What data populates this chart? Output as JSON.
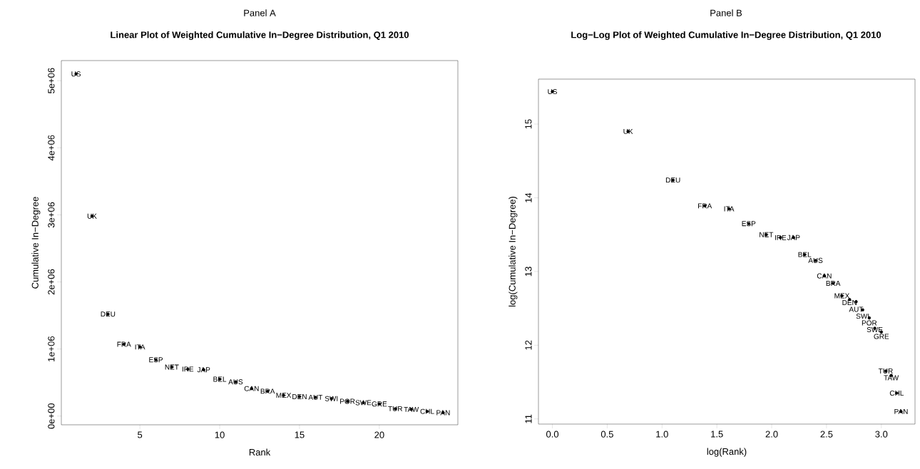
{
  "chart_data": [
    {
      "type": "scatter",
      "title": "Panel A",
      "subtitle": "Linear Plot of Weighted Cumulative In−Degree Distribution, Q1 2010",
      "xlabel": "Rank",
      "ylabel": "Cumulative In−Degree",
      "marker": "none",
      "x": [
        1,
        2,
        3,
        4,
        5,
        6,
        7,
        8,
        9,
        10,
        11,
        12,
        13,
        14,
        15,
        16,
        17,
        18,
        19,
        20,
        21,
        22,
        23,
        24
      ],
      "values": [
        5100000,
        2980000,
        1520000,
        1070000,
        1030000,
        840000,
        730000,
        700000,
        690000,
        550000,
        510000,
        410000,
        370000,
        310000,
        290000,
        280000,
        260000,
        220000,
        200000,
        180000,
        110000,
        100000,
        70000,
        50000
      ],
      "annotations": [
        {
          "text": "US",
          "x": 1,
          "y": 5100000
        },
        {
          "text": "UK",
          "x": 2,
          "y": 2980000
        },
        {
          "text": "DEU",
          "x": 3,
          "y": 1520000
        },
        {
          "text": "FRA",
          "x": 4,
          "y": 1070000
        },
        {
          "text": "ITA",
          "x": 5,
          "y": 1030000
        },
        {
          "text": "ESP",
          "x": 6,
          "y": 840000
        },
        {
          "text": "NET",
          "x": 7,
          "y": 730000
        },
        {
          "text": "IRE",
          "x": 8,
          "y": 700000
        },
        {
          "text": "JAP",
          "x": 9,
          "y": 690000
        },
        {
          "text": "BEL",
          "x": 10,
          "y": 550000
        },
        {
          "text": "AUS",
          "x": 11,
          "y": 510000
        },
        {
          "text": "CAN",
          "x": 12,
          "y": 410000
        },
        {
          "text": "BRA",
          "x": 13,
          "y": 370000
        },
        {
          "text": "MEX",
          "x": 14,
          "y": 310000
        },
        {
          "text": "DEN",
          "x": 15,
          "y": 290000
        },
        {
          "text": "AUT",
          "x": 16,
          "y": 280000
        },
        {
          "text": "SWI",
          "x": 17,
          "y": 260000
        },
        {
          "text": "POR",
          "x": 18,
          "y": 220000
        },
        {
          "text": "SWE",
          "x": 19,
          "y": 200000
        },
        {
          "text": "GRE",
          "x": 20,
          "y": 180000
        },
        {
          "text": "TUR",
          "x": 21,
          "y": 110000
        },
        {
          "text": "TAW",
          "x": 22,
          "y": 100000
        },
        {
          "text": "CHL",
          "x": 23,
          "y": 70000
        },
        {
          "text": "PAN",
          "x": 24,
          "y": 50000
        }
      ],
      "xlim": [
        0.08,
        24.92
      ],
      "ylim": [
        -130000,
        5300000
      ],
      "xticks": [
        5,
        10,
        15,
        20
      ],
      "yticks": [
        {
          "value": 0,
          "label": "0e+00"
        },
        {
          "value": 1000000,
          "label": "1e+06"
        },
        {
          "value": 2000000,
          "label": "2e+06"
        },
        {
          "value": 3000000,
          "label": "3e+06"
        },
        {
          "value": 4000000,
          "label": "4e+06"
        },
        {
          "value": 5000000,
          "label": "5e+06"
        }
      ]
    },
    {
      "type": "scatter",
      "title": "Panel B",
      "subtitle": "Log−Log Plot of Weighted Cumulative In−Degree Distribution, Q1 2010",
      "xlabel": "log(Rank)",
      "ylabel": "log(Cumulative In−Degree)",
      "marker": "none",
      "x": [
        0,
        0.69,
        1.1,
        1.39,
        1.61,
        1.79,
        1.95,
        2.08,
        2.2,
        2.3,
        2.4,
        2.48,
        2.56,
        2.64,
        2.71,
        2.77,
        2.83,
        2.89,
        2.94,
        3.0,
        3.04,
        3.09,
        3.14,
        3.18
      ],
      "values": [
        15.44,
        14.9,
        14.24,
        13.89,
        13.85,
        13.65,
        13.5,
        13.46,
        13.46,
        13.23,
        13.15,
        12.94,
        12.84,
        12.67,
        12.62,
        12.59,
        12.48,
        12.37,
        12.23,
        12.18,
        11.65,
        11.59,
        11.35,
        11.1
      ],
      "annotations": [
        {
          "text": "US",
          "x": 0,
          "y": 15.44
        },
        {
          "text": "UK",
          "x": 0.69,
          "y": 14.9
        },
        {
          "text": "DEU",
          "x": 1.1,
          "y": 14.24
        },
        {
          "text": "FRA",
          "x": 1.39,
          "y": 13.89
        },
        {
          "text": "ITA",
          "x": 1.61,
          "y": 13.85
        },
        {
          "text": "ESP",
          "x": 1.79,
          "y": 13.65
        },
        {
          "text": "NET",
          "x": 1.95,
          "y": 13.5
        },
        {
          "text": "IRE",
          "x": 2.08,
          "y": 13.46
        },
        {
          "text": "JAP",
          "x": 2.2,
          "y": 13.46
        },
        {
          "text": "BEL",
          "x": 2.3,
          "y": 13.23
        },
        {
          "text": "AUS",
          "x": 2.4,
          "y": 13.15
        },
        {
          "text": "CAN",
          "x": 2.48,
          "y": 12.94
        },
        {
          "text": "BRA",
          "x": 2.56,
          "y": 12.84
        },
        {
          "text": "MEX",
          "x": 2.64,
          "y": 12.67
        },
        {
          "text": "DEN",
          "x": 2.71,
          "y": 12.62
        },
        {
          "text": "AUT",
          "x": 2.77,
          "y": 12.59
        },
        {
          "text": "SWI",
          "x": 2.83,
          "y": 12.48
        },
        {
          "text": "POR",
          "x": 2.89,
          "y": 12.37
        },
        {
          "text": "SWE",
          "x": 2.94,
          "y": 12.23
        },
        {
          "text": "GRE",
          "x": 3.0,
          "y": 12.18
        },
        {
          "text": "TUR",
          "x": 3.04,
          "y": 11.65
        },
        {
          "text": "TAW",
          "x": 3.09,
          "y": 11.59
        },
        {
          "text": "CHL",
          "x": 3.14,
          "y": 11.35
        },
        {
          "text": "PAN",
          "x": 3.18,
          "y": 11.1
        }
      ],
      "xlim": [
        -0.127,
        3.307
      ],
      "ylim": [
        10.93,
        15.61
      ],
      "xticks": [
        {
          "value": 0,
          "label": "0.0"
        },
        {
          "value": 0.5,
          "label": "0.5"
        },
        {
          "value": 1,
          "label": "1.0"
        },
        {
          "value": 1.5,
          "label": "1.5"
        },
        {
          "value": 2,
          "label": "2.0"
        },
        {
          "value": 2.5,
          "label": "2.5"
        },
        {
          "value": 3,
          "label": "3.0"
        }
      ],
      "yticks": [
        11,
        12,
        13,
        14,
        15
      ]
    }
  ]
}
